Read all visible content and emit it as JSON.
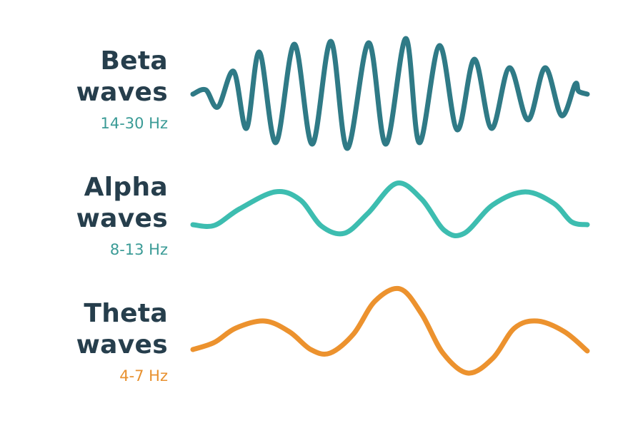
{
  "waves": [
    {
      "name_line1": "Beta",
      "name_line2": "waves",
      "frequency": "14-30 Hz",
      "color": "#2f7a86",
      "freq_color": "#3a9b96"
    },
    {
      "name_line1": "Alpha",
      "name_line2": "waves",
      "frequency": "8-13 Hz",
      "color": "#3dbdb0",
      "freq_color": "#3a9b96"
    },
    {
      "name_line1": "Theta",
      "name_line2": "waves",
      "frequency": "4-7 Hz",
      "color": "#ec922e",
      "freq_color": "#e8912f"
    }
  ]
}
